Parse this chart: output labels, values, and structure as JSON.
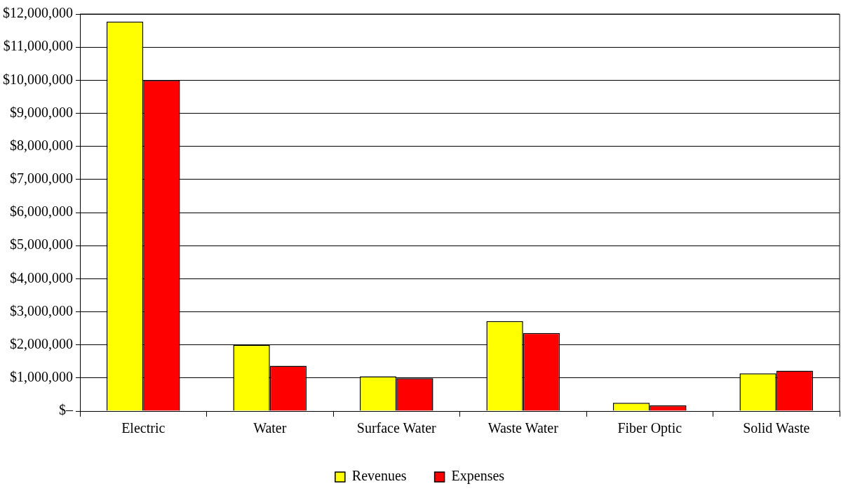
{
  "chart_data": {
    "type": "bar",
    "categories": [
      "Electric",
      "Water",
      "Surface Water",
      "Waste Water",
      "Fiber Optic",
      "Solid Waste"
    ],
    "series": [
      {
        "name": "Revenues",
        "color": "#ffff00",
        "values": [
          11770000,
          2000000,
          1050000,
          2720000,
          250000,
          1140000
        ]
      },
      {
        "name": "Expenses",
        "color": "#ff0000",
        "values": [
          10000000,
          1370000,
          990000,
          2360000,
          170000,
          1220000
        ]
      }
    ],
    "ylim": [
      0,
      12000000
    ],
    "yticks": [
      {
        "value": 0,
        "label": "$–"
      },
      {
        "value": 1000000,
        "label": "$1,000,000"
      },
      {
        "value": 2000000,
        "label": "$2,000,000"
      },
      {
        "value": 3000000,
        "label": "$3,000,000"
      },
      {
        "value": 4000000,
        "label": "$4,000,000"
      },
      {
        "value": 5000000,
        "label": "$5,000,000"
      },
      {
        "value": 6000000,
        "label": "$6,000,000"
      },
      {
        "value": 7000000,
        "label": "$7,000,000"
      },
      {
        "value": 8000000,
        "label": "$8,000,000"
      },
      {
        "value": 9000000,
        "label": "$9,000,000"
      },
      {
        "value": 10000000,
        "label": "$10,000,000"
      },
      {
        "value": 11000000,
        "label": "$11,000,000"
      },
      {
        "value": 12000000,
        "label": "$12,000,000"
      }
    ],
    "grid": "y",
    "legend": "bottom"
  }
}
